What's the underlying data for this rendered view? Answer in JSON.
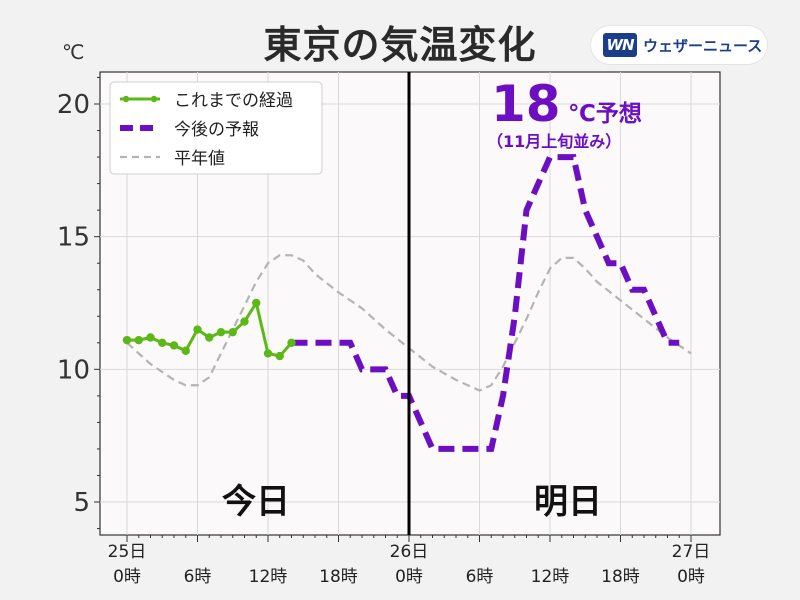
{
  "header": {
    "title": "東京の気温変化",
    "unit": "℃",
    "brand_logo": "WN",
    "brand_name": "ウェザーニュース"
  },
  "annotation": {
    "big_value": "18",
    "unit_label": "℃予想",
    "sub": "（11月上旬並み）",
    "color": "#6c0fc2"
  },
  "day_labels": {
    "today": "今日",
    "tomorrow": "明日"
  },
  "colors": {
    "observed": "#5cb816",
    "forecast": "#6c0fc2",
    "normal": "#b4b4b4",
    "divider": "#000000",
    "plot_bg": "#fbf9fa"
  },
  "chart_data": {
    "type": "line",
    "title": "東京の気温変化",
    "ylabel": "℃",
    "xlim": [
      0,
      48
    ],
    "ylim": [
      4,
      21.5
    ],
    "yticks": [
      5,
      10,
      15,
      20
    ],
    "xticks": [
      {
        "x": 0,
        "label": [
          "25日",
          "0時"
        ]
      },
      {
        "x": 6,
        "label": [
          "",
          "6時"
        ]
      },
      {
        "x": 12,
        "label": [
          "",
          "12時"
        ]
      },
      {
        "x": 18,
        "label": [
          "",
          "18時"
        ]
      },
      {
        "x": 24,
        "label": [
          "26日",
          "0時"
        ]
      },
      {
        "x": 30,
        "label": [
          "",
          "6時"
        ]
      },
      {
        "x": 36,
        "label": [
          "",
          "12時"
        ]
      },
      {
        "x": 42,
        "label": [
          "",
          "18時"
        ]
      },
      {
        "x": 48,
        "label": [
          "27日",
          "0時"
        ]
      }
    ],
    "divider_x": 24,
    "legend_position": "top-left",
    "grid": true,
    "series": [
      {
        "name": "これまでの経過",
        "style": "solid-markers",
        "points": [
          [
            0,
            11.1
          ],
          [
            1,
            11.1
          ],
          [
            2,
            11.2
          ],
          [
            3,
            11.0
          ],
          [
            4,
            10.9
          ],
          [
            5,
            10.7
          ],
          [
            6,
            11.5
          ],
          [
            7,
            11.2
          ],
          [
            8,
            11.4
          ],
          [
            9,
            11.4
          ],
          [
            10,
            11.8
          ],
          [
            11,
            12.5
          ],
          [
            12,
            10.6
          ],
          [
            13,
            10.5
          ],
          [
            14,
            11.0
          ]
        ]
      },
      {
        "name": "今後の予報",
        "style": "dashed-step",
        "points": [
          [
            14,
            11
          ],
          [
            15,
            11
          ],
          [
            16,
            11
          ],
          [
            17,
            11
          ],
          [
            18,
            11
          ],
          [
            19,
            11
          ],
          [
            20,
            10
          ],
          [
            21,
            10
          ],
          [
            22,
            10
          ],
          [
            23,
            9
          ],
          [
            24,
            9
          ],
          [
            25,
            8
          ],
          [
            26,
            7
          ],
          [
            27,
            7
          ],
          [
            28,
            7
          ],
          [
            29,
            7
          ],
          [
            30,
            7
          ],
          [
            31,
            7
          ],
          [
            32,
            9
          ],
          [
            33,
            12
          ],
          [
            34,
            16
          ],
          [
            35,
            17
          ],
          [
            36,
            18
          ],
          [
            37,
            18
          ],
          [
            38,
            18
          ],
          [
            39,
            16
          ],
          [
            40,
            15
          ],
          [
            41,
            14
          ],
          [
            42,
            14
          ],
          [
            43,
            13
          ],
          [
            44,
            13
          ],
          [
            45,
            12
          ],
          [
            46,
            11
          ],
          [
            47,
            11
          ]
        ]
      },
      {
        "name": "平年値",
        "style": "dashed",
        "points": [
          [
            0,
            11
          ],
          [
            2,
            10.2
          ],
          [
            4,
            9.6
          ],
          [
            5,
            9.4
          ],
          [
            6,
            9.4
          ],
          [
            7,
            9.7
          ],
          [
            8,
            10.6
          ],
          [
            10,
            12.4
          ],
          [
            11,
            13.3
          ],
          [
            12,
            14.0
          ],
          [
            13,
            14.3
          ],
          [
            14,
            14.3
          ],
          [
            15,
            14.1
          ],
          [
            16,
            13.6
          ],
          [
            18,
            12.9
          ],
          [
            20,
            12.3
          ],
          [
            22,
            11.5
          ],
          [
            24,
            10.8
          ],
          [
            26,
            10.1
          ],
          [
            28,
            9.6
          ],
          [
            30,
            9.2
          ],
          [
            31,
            9.4
          ],
          [
            32,
            10.1
          ],
          [
            34,
            11.9
          ],
          [
            35,
            12.9
          ],
          [
            36,
            13.8
          ],
          [
            37,
            14.2
          ],
          [
            38,
            14.2
          ],
          [
            39,
            13.8
          ],
          [
            40,
            13.3
          ],
          [
            42,
            12.6
          ],
          [
            44,
            11.9
          ],
          [
            46,
            11.2
          ],
          [
            48,
            10.6
          ]
        ]
      }
    ]
  }
}
